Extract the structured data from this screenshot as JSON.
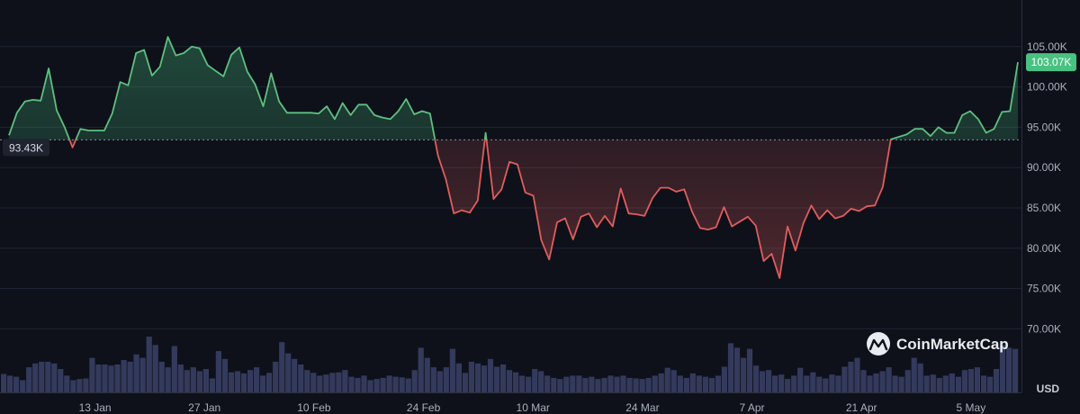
{
  "chart_data": {
    "type": "line",
    "x_tick_labels": [
      "13 Jan",
      "27 Jan",
      "10 Feb",
      "24 Feb",
      "10 Mar",
      "24 Mar",
      "7 Apr",
      "21 Apr",
      "5 May"
    ],
    "y_tick_labels": [
      "105.00K",
      "100.00K",
      "95.00K",
      "90.00K",
      "85.00K",
      "80.00K",
      "75.00K",
      "70.00K"
    ],
    "y_tick_values": [
      105000,
      100000,
      95000,
      90000,
      85000,
      80000,
      75000,
      70000
    ],
    "ylim": [
      62000,
      110000
    ],
    "x_range": [
      "2025-01-02",
      "2025-05-11"
    ],
    "unit_label": "USD",
    "baseline": {
      "value": 93430,
      "label": "93.43K"
    },
    "current": {
      "value": 103070,
      "label": "103.07K"
    },
    "colors": {
      "up_line": "#5fbf80",
      "down_line": "#e05d5d",
      "volume": "#343a5c",
      "grid": "#1f2433",
      "baseline": "#8b8f99",
      "current_tag": "#49c281"
    },
    "series": [
      {
        "values": [
          [
            0,
            94000
          ],
          [
            1,
            96800
          ],
          [
            2,
            98200
          ],
          [
            3,
            98400
          ],
          [
            4,
            98300
          ],
          [
            5,
            102300
          ],
          [
            6,
            97100
          ],
          [
            7,
            95000
          ],
          [
            8,
            92500
          ],
          [
            9,
            94800
          ],
          [
            10,
            94600
          ],
          [
            11,
            94600
          ],
          [
            12,
            94600
          ],
          [
            13,
            96700
          ],
          [
            14,
            100600
          ],
          [
            15,
            100200
          ],
          [
            16,
            104200
          ],
          [
            17,
            104600
          ],
          [
            18,
            101400
          ],
          [
            19,
            102500
          ],
          [
            20,
            106200
          ],
          [
            21,
            103900
          ],
          [
            22,
            104200
          ],
          [
            23,
            105000
          ],
          [
            24,
            104800
          ],
          [
            25,
            102700
          ],
          [
            26,
            102000
          ],
          [
            27,
            101300
          ],
          [
            28,
            104000
          ],
          [
            29,
            104900
          ],
          [
            30,
            101900
          ],
          [
            31,
            100300
          ],
          [
            32,
            97600
          ],
          [
            33,
            101700
          ],
          [
            34,
            98200
          ],
          [
            35,
            96800
          ],
          [
            36,
            96800
          ],
          [
            37,
            96800
          ],
          [
            38,
            96800
          ],
          [
            39,
            96700
          ],
          [
            40,
            97600
          ],
          [
            41,
            96000
          ],
          [
            42,
            98000
          ],
          [
            43,
            96500
          ],
          [
            44,
            97800
          ],
          [
            45,
            97800
          ],
          [
            46,
            96500
          ],
          [
            47,
            96200
          ],
          [
            48,
            96000
          ],
          [
            49,
            97000
          ],
          [
            50,
            98500
          ],
          [
            51,
            96600
          ],
          [
            52,
            97000
          ],
          [
            53,
            96700
          ],
          [
            54,
            91500
          ],
          [
            55,
            88500
          ],
          [
            56,
            84300
          ],
          [
            57,
            84700
          ],
          [
            58,
            84400
          ],
          [
            59,
            85900
          ],
          [
            60,
            94300
          ],
          [
            61,
            86100
          ],
          [
            62,
            87300
          ],
          [
            63,
            90700
          ],
          [
            64,
            90400
          ],
          [
            65,
            86900
          ],
          [
            66,
            86500
          ],
          [
            67,
            81000
          ],
          [
            68,
            78600
          ],
          [
            69,
            83200
          ],
          [
            70,
            83700
          ],
          [
            71,
            81100
          ],
          [
            72,
            83900
          ],
          [
            73,
            84300
          ],
          [
            74,
            82600
          ],
          [
            75,
            84000
          ],
          [
            76,
            82700
          ],
          [
            77,
            87400
          ],
          [
            78,
            84300
          ],
          [
            79,
            84200
          ],
          [
            80,
            84000
          ],
          [
            81,
            86200
          ],
          [
            82,
            87500
          ],
          [
            83,
            87500
          ],
          [
            84,
            87000
          ],
          [
            85,
            87300
          ],
          [
            86,
            84500
          ],
          [
            87,
            82500
          ],
          [
            88,
            82300
          ],
          [
            89,
            82600
          ],
          [
            90,
            85100
          ],
          [
            91,
            82700
          ],
          [
            92,
            83300
          ],
          [
            93,
            83900
          ],
          [
            94,
            82800
          ],
          [
            95,
            78400
          ],
          [
            96,
            79300
          ],
          [
            97,
            76300
          ],
          [
            98,
            82700
          ],
          [
            99,
            79700
          ],
          [
            100,
            83100
          ],
          [
            101,
            85300
          ],
          [
            102,
            83600
          ],
          [
            103,
            84700
          ],
          [
            104,
            83700
          ],
          [
            105,
            84000
          ],
          [
            106,
            84900
          ],
          [
            107,
            84600
          ],
          [
            108,
            85200
          ],
          [
            109,
            85300
          ],
          [
            110,
            87600
          ],
          [
            111,
            93500
          ],
          [
            112,
            93800
          ],
          [
            113,
            94100
          ],
          [
            114,
            94800
          ],
          [
            115,
            94800
          ],
          [
            116,
            93900
          ],
          [
            117,
            95000
          ],
          [
            118,
            94300
          ],
          [
            119,
            94300
          ],
          [
            120,
            96500
          ],
          [
            121,
            97000
          ],
          [
            122,
            96000
          ],
          [
            123,
            94300
          ],
          [
            124,
            94800
          ],
          [
            125,
            96900
          ],
          [
            126,
            97000
          ],
          [
            127,
            103070
          ]
        ]
      }
    ],
    "volume_note": "relative (no axis printed)",
    "volume": [
      0.33,
      0.3,
      0.28,
      0.22,
      0.45,
      0.52,
      0.55,
      0.55,
      0.52,
      0.42,
      0.3,
      0.22,
      0.24,
      0.25,
      0.62,
      0.5,
      0.5,
      0.48,
      0.5,
      0.58,
      0.55,
      0.68,
      0.62,
      1.0,
      0.85,
      0.55,
      0.45,
      0.83,
      0.5,
      0.4,
      0.45,
      0.38,
      0.42,
      0.25,
      0.74,
      0.6,
      0.36,
      0.38,
      0.34,
      0.4,
      0.45,
      0.3,
      0.35,
      0.55,
      0.9,
      0.7,
      0.6,
      0.5,
      0.4,
      0.35,
      0.3,
      0.32,
      0.35,
      0.36,
      0.4,
      0.28,
      0.26,
      0.3,
      0.22,
      0.24,
      0.26,
      0.3,
      0.28,
      0.27,
      0.25,
      0.4,
      0.8,
      0.62,
      0.45,
      0.38,
      0.45,
      0.78,
      0.52,
      0.35,
      0.55,
      0.52,
      0.48,
      0.6,
      0.46,
      0.5,
      0.4,
      0.36,
      0.3,
      0.28,
      0.42,
      0.38,
      0.3,
      0.26,
      0.24,
      0.28,
      0.3,
      0.3,
      0.26,
      0.28,
      0.24,
      0.26,
      0.3,
      0.28,
      0.3,
      0.26,
      0.25,
      0.24,
      0.26,
      0.3,
      0.34,
      0.44,
      0.4,
      0.3,
      0.26,
      0.34,
      0.3,
      0.28,
      0.26,
      0.3,
      0.46,
      0.88,
      0.8,
      0.62,
      0.78,
      0.48,
      0.38,
      0.4,
      0.3,
      0.32,
      0.24,
      0.3,
      0.44,
      0.3,
      0.36,
      0.28,
      0.25,
      0.32,
      0.3,
      0.46,
      0.55,
      0.62,
      0.4,
      0.3,
      0.34,
      0.38,
      0.45,
      0.3,
      0.28,
      0.4,
      0.62,
      0.52,
      0.3,
      0.32,
      0.26,
      0.3,
      0.34,
      0.28,
      0.4,
      0.42,
      0.45,
      0.3,
      0.28,
      0.42,
      0.85,
      0.8,
      0.78
    ]
  },
  "branding": {
    "name": "CoinMarketCap"
  }
}
